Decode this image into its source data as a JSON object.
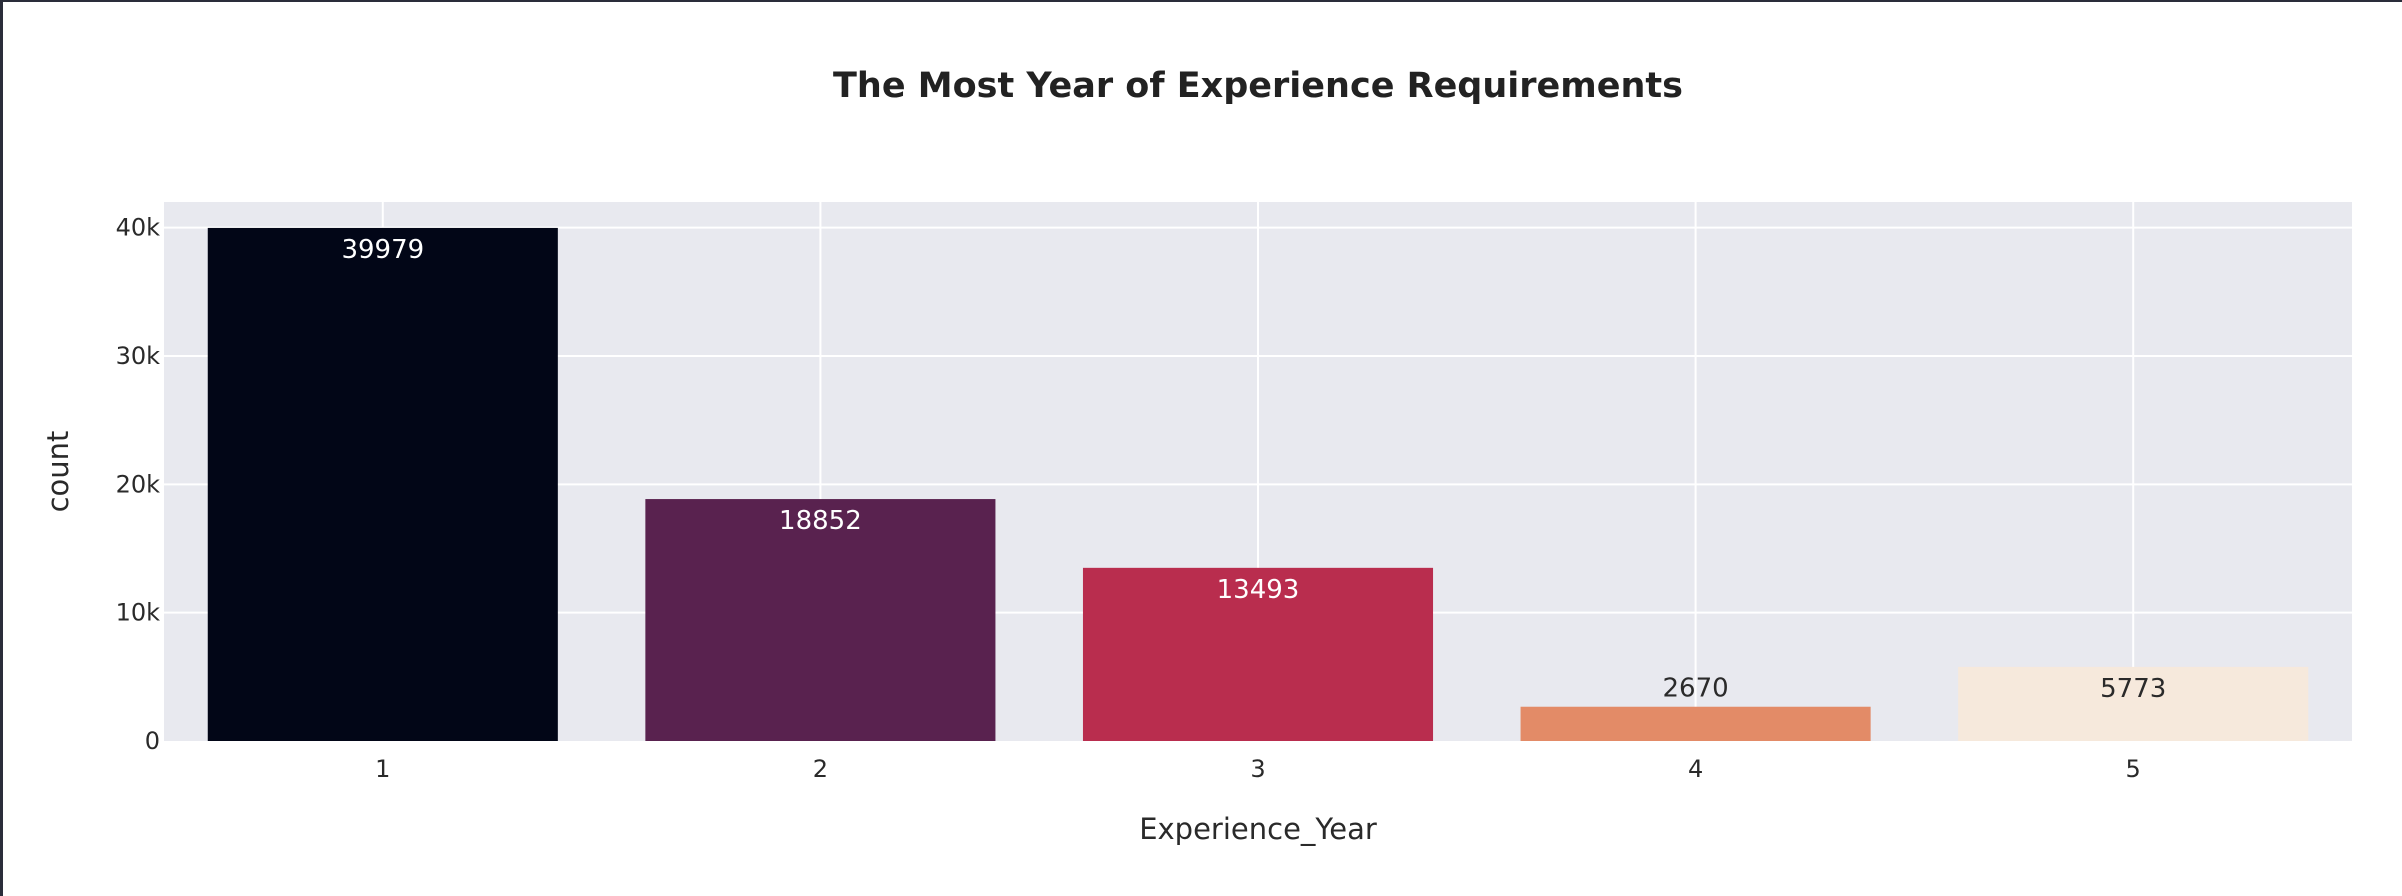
{
  "chart_data": {
    "type": "bar",
    "title": "The Most Year of Experience Requirements",
    "xlabel": "Experience_Year",
    "ylabel": "count",
    "categories": [
      "1",
      "2",
      "3",
      "4",
      "5"
    ],
    "values": [
      39979,
      18852,
      13493,
      2670,
      5773
    ],
    "value_labels": [
      "39979",
      "18852",
      "13493",
      "2670",
      "5773"
    ],
    "colors": [
      "#020617",
      "#59224f",
      "#b92d4e",
      "#e38b67",
      "#f6e9dc"
    ],
    "label_colors": [
      "#ffffff",
      "#ffffff",
      "#ffffff",
      "#2a2a2a",
      "#2a2a2a"
    ],
    "label_positions": [
      "inside",
      "inside",
      "inside",
      "outside",
      "inside"
    ],
    "ylim": [
      0,
      42000
    ],
    "yticks": [
      0,
      10000,
      20000,
      30000,
      40000
    ],
    "ytick_labels": [
      "0",
      "10k",
      "20k",
      "30k",
      "40k"
    ],
    "grid": true,
    "plot_background": "#e8e9ef",
    "grid_color": "#ffffff"
  }
}
